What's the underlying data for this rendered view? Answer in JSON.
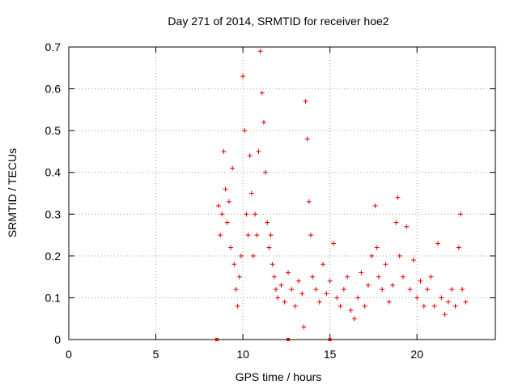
{
  "chart_data": {
    "type": "scatter",
    "title": "Day 271 of 2014, SRMTID for receiver hoe2",
    "xlabel": "GPS time / hours",
    "ylabel": "SRMTID / TECUs",
    "xlim": [
      0,
      24.5
    ],
    "ylim": [
      0,
      0.7
    ],
    "xticks": [
      0,
      5,
      10,
      15,
      20
    ],
    "yticks": [
      0,
      0.1,
      0.2,
      0.3,
      0.4,
      0.5,
      0.6,
      0.7
    ],
    "x_tick_labels": [
      "0",
      "5",
      "10",
      "15",
      "20"
    ],
    "y_tick_labels": [
      "0",
      "0.1",
      "0.2",
      "0.3",
      "0.4",
      "0.5",
      "0.6",
      "0.7"
    ],
    "grid": true,
    "marker": "+",
    "color": "#e00000",
    "series": [
      {
        "name": "SRMTID",
        "x": [
          8.6,
          8.7,
          8.8,
          8.9,
          9.0,
          9.1,
          9.2,
          9.3,
          9.4,
          9.5,
          9.6,
          9.7,
          9.8,
          9.9,
          10.0,
          10.1,
          10.2,
          10.3,
          10.4,
          10.5,
          10.6,
          10.7,
          10.8,
          10.9,
          11.0,
          11.1,
          11.2,
          11.3,
          11.4,
          11.5,
          11.6,
          11.7,
          11.8,
          11.9,
          12.0,
          12.2,
          12.4,
          12.6,
          12.8,
          13.0,
          13.2,
          13.4,
          13.5,
          13.6,
          13.7,
          13.8,
          13.9,
          14.0,
          14.2,
          14.4,
          14.6,
          14.8,
          15.0,
          15.2,
          15.4,
          15.6,
          15.8,
          16.0,
          16.2,
          16.4,
          16.6,
          16.8,
          17.0,
          17.2,
          17.4,
          17.6,
          17.7,
          17.8,
          18.0,
          18.2,
          18.4,
          18.6,
          18.8,
          18.9,
          19.0,
          19.2,
          19.4,
          19.6,
          19.8,
          20.0,
          20.2,
          20.4,
          20.6,
          20.8,
          21.0,
          21.2,
          21.4,
          21.6,
          21.8,
          22.0,
          22.2,
          22.4,
          22.5,
          22.6,
          22.8
        ],
        "y": [
          0.32,
          0.25,
          0.3,
          0.45,
          0.36,
          0.28,
          0.33,
          0.22,
          0.41,
          0.18,
          0.12,
          0.08,
          0.15,
          0.2,
          0.63,
          0.5,
          0.3,
          0.25,
          0.44,
          0.35,
          0.2,
          0.3,
          0.25,
          0.45,
          0.69,
          0.59,
          0.52,
          0.4,
          0.28,
          0.22,
          0.25,
          0.18,
          0.15,
          0.12,
          0.1,
          0.13,
          0.09,
          0.16,
          0.12,
          0.08,
          0.14,
          0.11,
          0.03,
          0.57,
          0.48,
          0.33,
          0.25,
          0.15,
          0.12,
          0.09,
          0.18,
          0.11,
          0.14,
          0.23,
          0.1,
          0.08,
          0.12,
          0.15,
          0.07,
          0.05,
          0.1,
          0.16,
          0.08,
          0.13,
          0.2,
          0.32,
          0.22,
          0.15,
          0.12,
          0.18,
          0.09,
          0.13,
          0.28,
          0.34,
          0.2,
          0.15,
          0.27,
          0.12,
          0.19,
          0.1,
          0.14,
          0.08,
          0.12,
          0.15,
          0.08,
          0.23,
          0.1,
          0.06,
          0.09,
          0.12,
          0.08,
          0.22,
          0.3,
          0.12,
          0.09
        ]
      }
    ],
    "zero_markers_x": [
      8.5,
      12.6,
      15.0
    ]
  }
}
